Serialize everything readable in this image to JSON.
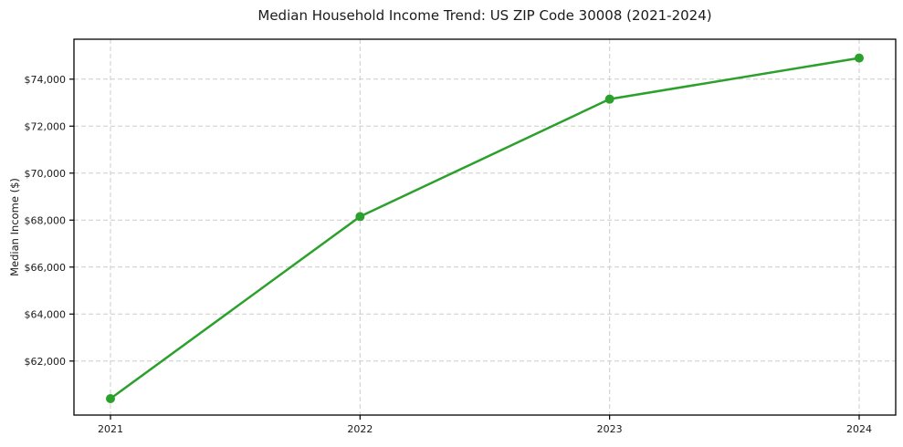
{
  "page": {
    "background": "#ffffff"
  },
  "chart_data": {
    "type": "line",
    "title": "Median Household Income Trend: US ZIP Code 30008 (2021-2024)",
    "categories": [
      "2021",
      "2022",
      "2023",
      "2024"
    ],
    "series": [
      {
        "name": "Median Household Income",
        "values": [
          60400,
          68150,
          73150,
          74900
        ]
      }
    ],
    "xlabel": "",
    "ylabel": "Median Income ($)",
    "ylim": [
      59700,
      75700
    ],
    "yticks": [
      62000,
      64000,
      66000,
      68000,
      70000,
      72000,
      74000
    ],
    "ytick_labels": [
      "$62,000",
      "$64,000",
      "$66,000",
      "$68,000",
      "$70,000",
      "$72,000",
      "$74,000"
    ],
    "grid": true,
    "grid_style": "dashed",
    "legend": "none",
    "line_color": "#2ca02c",
    "marker_color": "#2ca02c",
    "grid_color": "#cccccc",
    "axis_color": "#000000",
    "text_color": "#1a1a1a",
    "background": "#ffffff",
    "marker": "circle",
    "marker_diameter": 10,
    "line_width": 2.5
  }
}
